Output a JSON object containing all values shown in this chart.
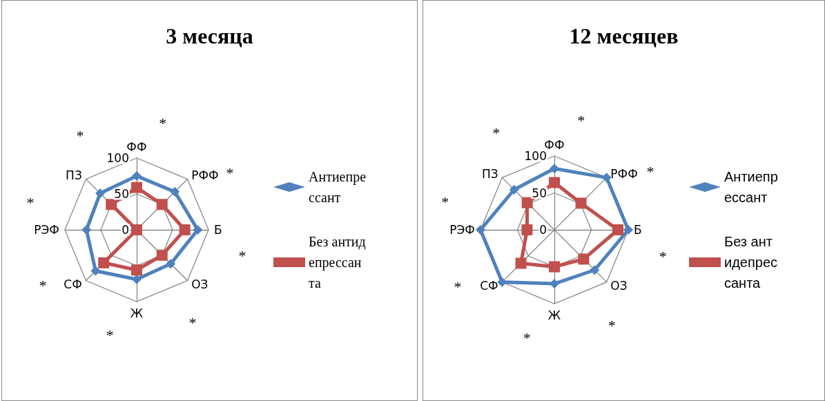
{
  "chart_data": [
    {
      "type": "radar",
      "title": "3 месяца",
      "categories": [
        "ФФ",
        "РФФ",
        "Б",
        "ОЗ",
        "Ж",
        "СФ",
        "РЭФ",
        "ПЗ"
      ],
      "ylim": [
        0,
        100
      ],
      "yticks": [
        0,
        50,
        100
      ],
      "grid": true,
      "legend": "right",
      "annotations": [
        "*",
        "*",
        "*",
        "*",
        "*",
        "*",
        "*",
        "*"
      ],
      "series": [
        {
          "name": "Антиепрессант",
          "color": "#4f81bd",
          "marker": "diamond",
          "values": [
            75,
            75,
            85,
            67,
            69,
            81,
            70,
            72
          ]
        },
        {
          "name": "Без антидепрессанта",
          "color": "#c0504d",
          "marker": "square",
          "values": [
            59,
            50,
            67,
            50,
            56,
            65,
            0,
            50
          ]
        }
      ]
    },
    {
      "type": "radar",
      "title": "12 месяцев",
      "categories": [
        "ФФ",
        "РФФ",
        "Б",
        "ОЗ",
        "Ж",
        "СФ",
        "РЭФ",
        "ПЗ"
      ],
      "ylim": [
        0,
        100
      ],
      "yticks": [
        0,
        50,
        100
      ],
      "grid": true,
      "legend": "right",
      "annotations": [
        "*",
        "*",
        "*",
        "*",
        "*",
        "*",
        "*",
        "*"
      ],
      "series": [
        {
          "name": "Антиепрессант",
          "color": "#4f81bd",
          "marker": "diamond",
          "values": [
            83,
            100,
            100,
            77,
            73,
            100,
            100,
            77
          ]
        },
        {
          "name": "Без антидепрессанта",
          "color": "#c0504d",
          "marker": "square",
          "values": [
            64,
            51,
            86,
            56,
            50,
            64,
            37,
            52
          ]
        }
      ]
    }
  ]
}
